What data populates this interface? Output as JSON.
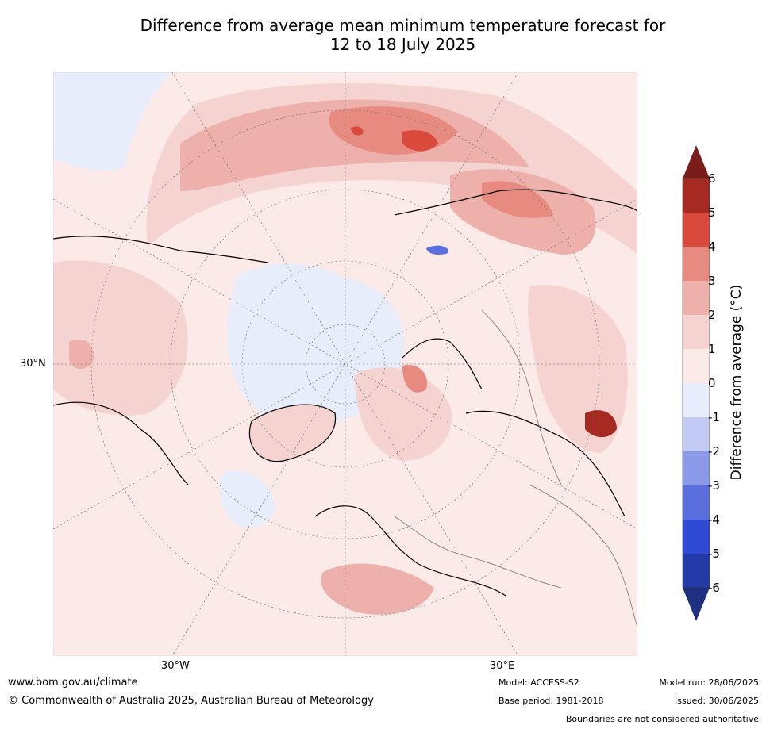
{
  "title_line1": "Difference from average mean minimum temperature forecast for",
  "title_line2": "12 to 18 July 2025",
  "axis_labels": {
    "lat_30n": "30°N",
    "lon_30w": "30°W",
    "lon_30e": "30°E"
  },
  "colorbar": {
    "label": "Difference from average (°C)",
    "ticks": [
      "6",
      "5",
      "4",
      "3",
      "2",
      "1",
      "0",
      "-1",
      "-2",
      "-3",
      "-4",
      "-5",
      "-6"
    ],
    "colors": [
      "#7a1c1a",
      "#a52a22",
      "#d94a3d",
      "#e78a80",
      "#eeb0aa",
      "#f5d3d0",
      "#fbeae8",
      "#e8edfb",
      "#c2cbf3",
      "#8b9ae8",
      "#5a6fdd",
      "#2f4bd6",
      "#243aa8",
      "#1e2e80"
    ]
  },
  "footer": {
    "website": "www.bom.gov.au/climate",
    "copyright": "© Commonwealth of Australia 2025, Australian Bureau of Meteorology",
    "model": "Model: ACCESS-S2",
    "base_period": "Base period: 1981-2018",
    "model_run": "Model run: 28/06/2025",
    "issued": "Issued: 30/06/2025",
    "disclaimer": "Boundaries are not considered authoritative"
  }
}
